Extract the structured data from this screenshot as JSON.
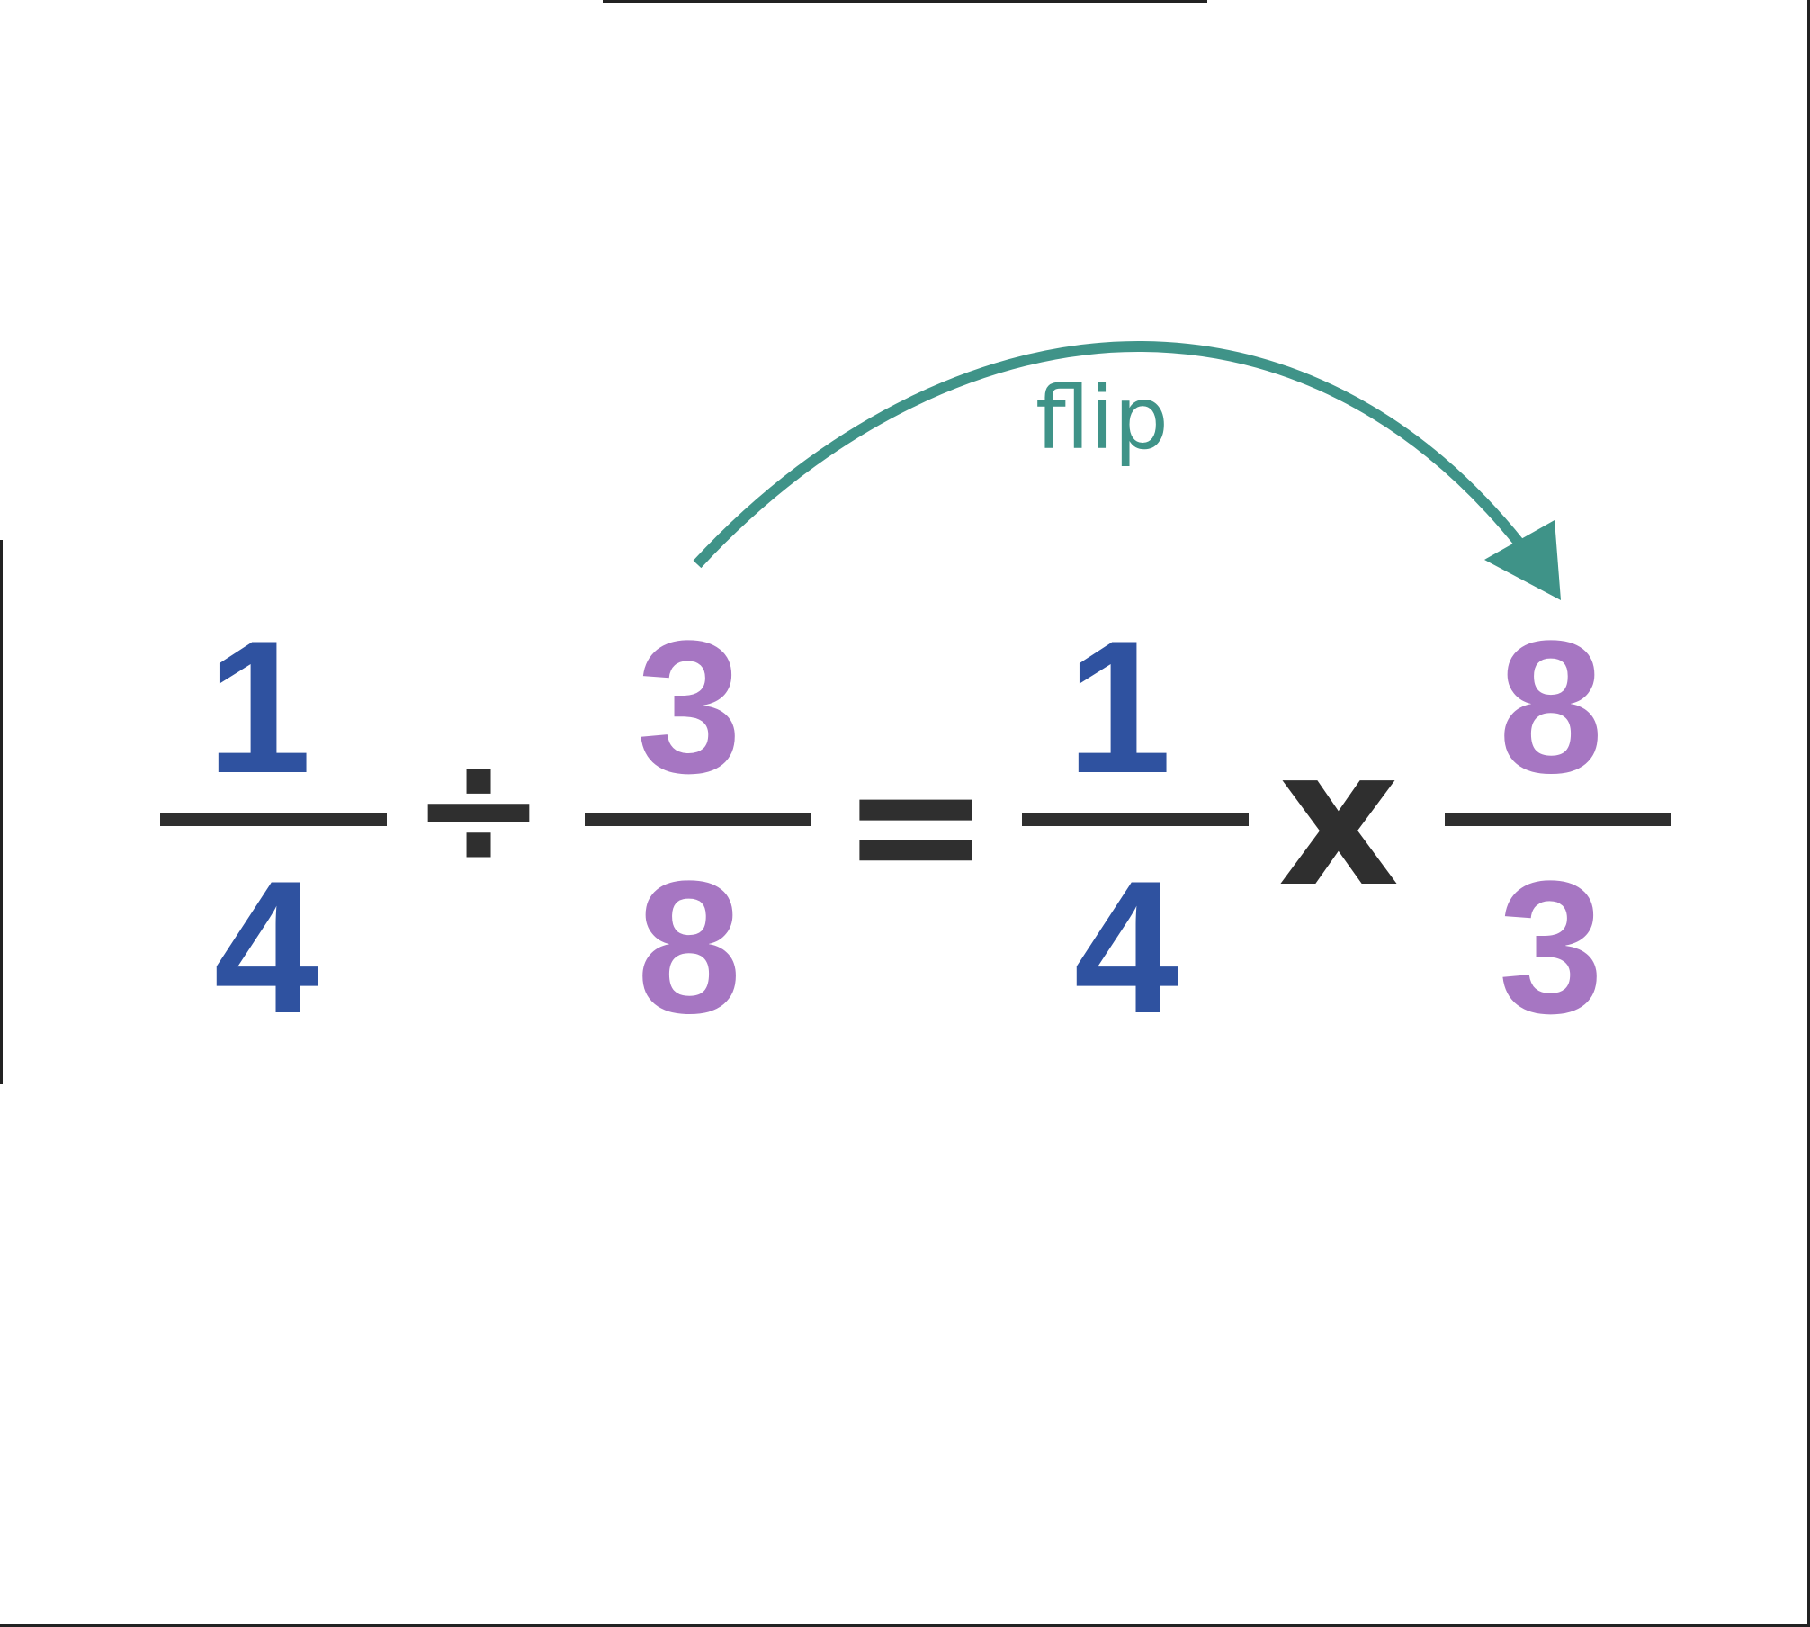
{
  "equation": {
    "left": {
      "fraction_a": {
        "numerator": "1",
        "denominator": "4"
      },
      "operator": "÷",
      "fraction_b": {
        "numerator": "3",
        "denominator": "8"
      }
    },
    "equals": "=",
    "right": {
      "fraction_a": {
        "numerator": "1",
        "denominator": "4"
      },
      "operator": "x",
      "fraction_b": {
        "numerator": "8",
        "denominator": "3"
      }
    }
  },
  "annotation": {
    "label": "flip"
  },
  "colors": {
    "first_fraction": "#2f52a0",
    "second_fraction": "#a676c2",
    "operators": "#2f2f2f",
    "arrow": "#3f9388",
    "background": "#ffffff"
  }
}
